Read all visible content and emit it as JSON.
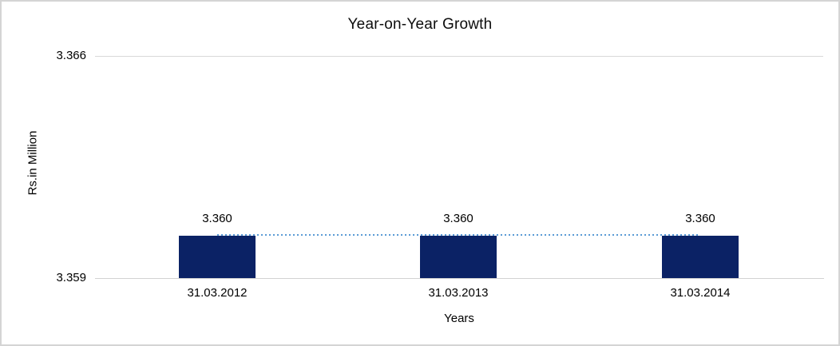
{
  "chart_data": {
    "type": "bar",
    "title": "Year-on-Year Growth",
    "xlabel": "Years",
    "ylabel": "Rs.in Million",
    "categories": [
      "31.03.2012",
      "31.03.2013",
      "31.03.2014"
    ],
    "values": [
      3.36,
      3.36,
      3.36
    ],
    "data_labels": [
      "3.360",
      "3.360",
      "3.360"
    ],
    "ylim": [
      3.359,
      3.366
    ],
    "ytick_labels": [
      "3.366",
      "3.359"
    ],
    "grid": "single horizontal gridline at y=3.366, x-axis baseline at y=3.359",
    "legend": "none",
    "bar_color": "#0b2265",
    "gridline_color": "#d9d9d9",
    "trendline": {
      "type": "flat-dotted",
      "description": "dotted line connecting the tops of the three bars at 3.360",
      "color": "#5b9bd5"
    }
  }
}
